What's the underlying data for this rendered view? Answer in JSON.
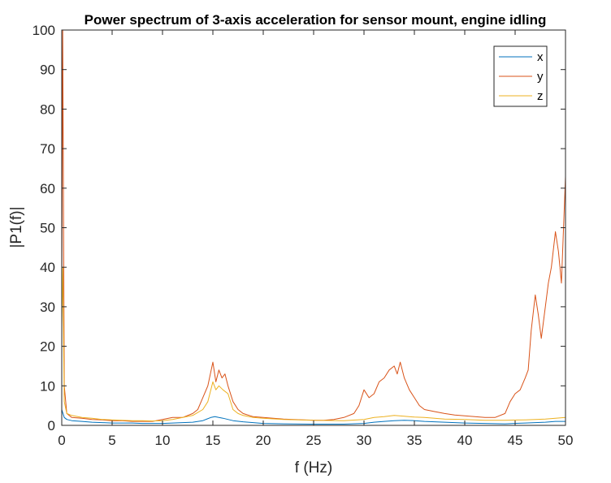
{
  "chart_data": {
    "type": "line",
    "title": "Power spectrum of 3-axis acceleration for sensor mount, engine idling",
    "xlabel": "f (Hz)",
    "ylabel": "|P1(f)|",
    "xlim": [
      0,
      50
    ],
    "ylim": [
      0,
      100
    ],
    "xticks": [
      0,
      5,
      10,
      15,
      20,
      25,
      30,
      35,
      40,
      45,
      50
    ],
    "yticks": [
      0,
      10,
      20,
      30,
      40,
      50,
      60,
      70,
      80,
      90,
      100
    ],
    "legend_position": "top-right",
    "grid": false,
    "series": [
      {
        "name": "x",
        "color": "#0072BD",
        "x": [
          0,
          0.25,
          0.5,
          1,
          2,
          3,
          4,
          5,
          6,
          7,
          8,
          9,
          10,
          11,
          12,
          13,
          14,
          14.8,
          15.2,
          15.6,
          16,
          16.5,
          17,
          18,
          19,
          20,
          22,
          25,
          28,
          30,
          31,
          32,
          33,
          34,
          35,
          36,
          37,
          38,
          40,
          42,
          44,
          46,
          48,
          49,
          50
        ],
        "y": [
          4,
          2,
          1.5,
          1.2,
          1,
          0.8,
          0.7,
          0.6,
          0.6,
          0.6,
          0.5,
          0.5,
          0.5,
          0.6,
          0.7,
          0.8,
          1.2,
          2,
          2.2,
          2,
          1.8,
          1.5,
          1.2,
          0.9,
          0.7,
          0.5,
          0.4,
          0.3,
          0.3,
          0.5,
          0.8,
          1,
          1.2,
          1.3,
          1.2,
          1,
          0.9,
          0.8,
          0.6,
          0.5,
          0.4,
          0.6,
          0.8,
          1,
          1
        ]
      },
      {
        "name": "y",
        "color": "#D95319",
        "x": [
          0,
          0.1,
          0.25,
          0.5,
          1,
          2,
          3,
          4,
          5,
          6,
          7,
          8,
          9,
          10,
          11,
          12,
          13,
          13.5,
          14,
          14.5,
          15,
          15.3,
          15.6,
          15.9,
          16.2,
          16.5,
          17,
          17.5,
          18,
          19,
          20,
          21,
          22,
          23,
          24,
          25,
          26,
          27,
          28,
          29,
          29.5,
          30,
          30.5,
          31,
          31.5,
          32,
          32.5,
          33,
          33.3,
          33.6,
          34,
          34.5,
          35,
          35.5,
          36,
          37,
          38,
          39,
          40,
          41,
          42,
          43,
          44,
          44.5,
          45,
          45.5,
          46,
          46.3,
          46.6,
          47,
          47.3,
          47.6,
          48,
          48.3,
          48.6,
          49,
          49.3,
          49.6,
          50
        ],
        "y": [
          30,
          100,
          10,
          3,
          2,
          1.8,
          1.5,
          1.4,
          1.2,
          1.2,
          1,
          1,
          1,
          1.5,
          2,
          2,
          3,
          4,
          7,
          10,
          16,
          11,
          14,
          12,
          13,
          10,
          6,
          4,
          3,
          2.2,
          2,
          1.8,
          1.6,
          1.5,
          1.4,
          1.3,
          1.3,
          1.5,
          2,
          3,
          5,
          9,
          7,
          8,
          11,
          12,
          14,
          15,
          13,
          16,
          12,
          9,
          7,
          5,
          4,
          3.5,
          3,
          2.6,
          2.4,
          2.2,
          2,
          2,
          3,
          6,
          8,
          9,
          12,
          14,
          24,
          33,
          28,
          22,
          30,
          36,
          40,
          49,
          44,
          36,
          63
        ]
      },
      {
        "name": "z",
        "color": "#EDB120",
        "x": [
          0,
          0.1,
          0.25,
          0.5,
          1,
          2,
          3,
          4,
          5,
          6,
          7,
          8,
          9,
          10,
          11,
          12,
          13,
          14,
          14.5,
          15,
          15.3,
          15.6,
          16,
          16.5,
          17,
          17.5,
          18,
          19,
          20,
          22,
          25,
          28,
          30,
          31,
          32,
          33,
          34,
          35,
          36,
          37,
          38,
          40,
          42,
          44,
          46,
          48,
          49,
          50
        ],
        "y": [
          25,
          40,
          6,
          3,
          2.5,
          2,
          1.8,
          1.5,
          1.4,
          1.3,
          1.2,
          1.2,
          1.1,
          1.2,
          1.5,
          2,
          2.5,
          4,
          6,
          11,
          9,
          10,
          9,
          8,
          4,
          3,
          2.5,
          2,
          1.8,
          1.5,
          1.3,
          1.2,
          1.5,
          2,
          2.2,
          2.5,
          2.3,
          2.1,
          2,
          1.8,
          1.6,
          1.5,
          1.3,
          1.3,
          1.4,
          1.6,
          1.8,
          2
        ]
      }
    ]
  }
}
